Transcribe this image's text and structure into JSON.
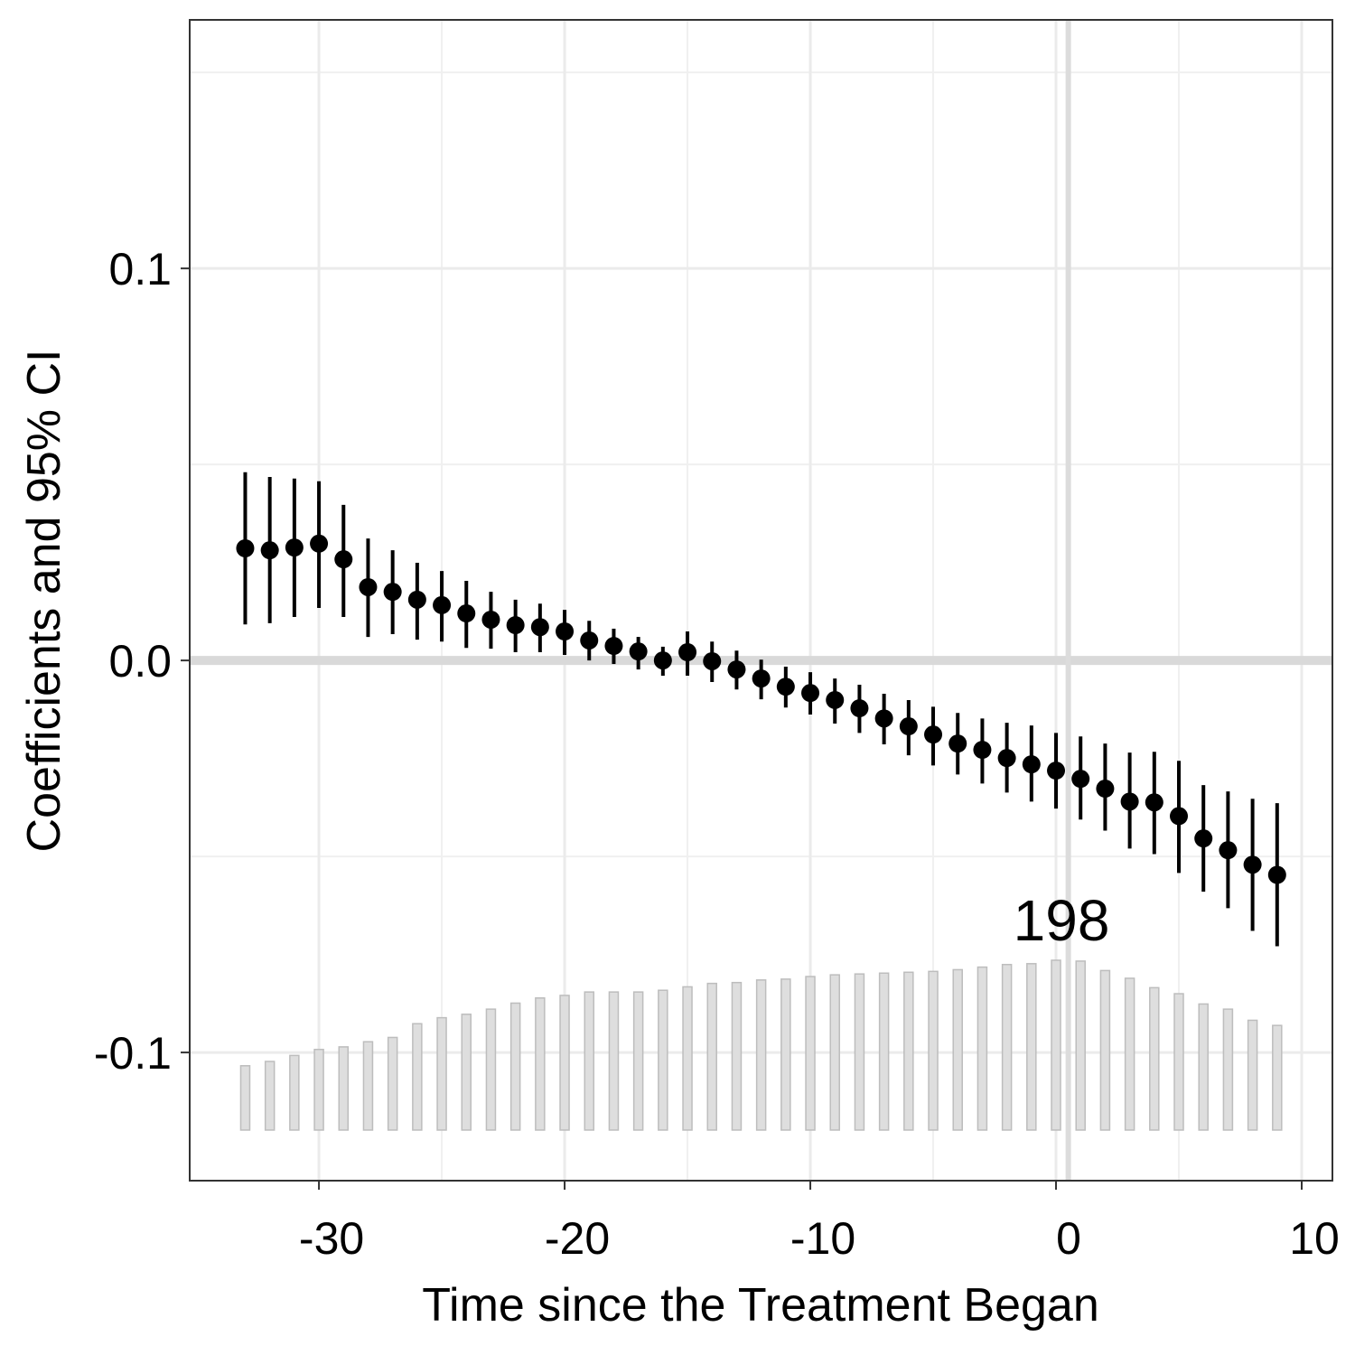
{
  "chart_data": {
    "type": "errorbar",
    "xlabel": "Time since the Treatment Began",
    "ylabel": "Coefficients and 95% CI",
    "x": [
      -33,
      -32,
      -31,
      -30,
      -29,
      -28,
      -27,
      -26,
      -25,
      -24,
      -23,
      -22,
      -21,
      -20,
      -19,
      -18,
      -17,
      -16,
      -15,
      -14,
      -13,
      -12,
      -11,
      -10,
      -9,
      -8,
      -7,
      -6,
      -5,
      -4,
      -3,
      -2,
      -1,
      0,
      1,
      2,
      3,
      4,
      5,
      6,
      7,
      8,
      9
    ],
    "values": [
      0.0286,
      0.0281,
      0.0288,
      0.0298,
      0.0258,
      0.0187,
      0.0175,
      0.0155,
      0.0141,
      0.012,
      0.0104,
      0.009,
      0.0085,
      0.0074,
      0.0051,
      0.0037,
      0.0023,
      0.0,
      0.0021,
      -0.0002,
      -0.0023,
      -0.0046,
      -0.0067,
      -0.0083,
      -0.0101,
      -0.0122,
      -0.0148,
      -0.0168,
      -0.0189,
      -0.0212,
      -0.0228,
      -0.0249,
      -0.0265,
      -0.0281,
      -0.0302,
      -0.0327,
      -0.036,
      -0.0362,
      -0.0397,
      -0.0454,
      -0.0484,
      -0.0521,
      -0.0547
    ],
    "ci_low": [
      0.0092,
      0.0095,
      0.0111,
      0.0134,
      0.0111,
      0.006,
      0.0067,
      0.0053,
      0.0048,
      0.0032,
      0.003,
      0.0021,
      0.0021,
      0.0014,
      0.0,
      -0.0009,
      -0.0023,
      -0.0039,
      -0.0039,
      -0.0055,
      -0.0074,
      -0.0099,
      -0.012,
      -0.0138,
      -0.0161,
      -0.0185,
      -0.0214,
      -0.0242,
      -0.0268,
      -0.0291,
      -0.0314,
      -0.0337,
      -0.036,
      -0.0378,
      -0.0406,
      -0.0434,
      -0.048,
      -0.0494,
      -0.0542,
      -0.059,
      -0.0632,
      -0.069,
      -0.0729
    ],
    "ci_high": [
      0.048,
      0.0468,
      0.0464,
      0.0457,
      0.0397,
      0.0311,
      0.0281,
      0.0249,
      0.0228,
      0.0203,
      0.0175,
      0.0155,
      0.0145,
      0.0129,
      0.0101,
      0.0081,
      0.006,
      0.0035,
      0.0074,
      0.0048,
      0.0025,
      0.0002,
      -0.0016,
      -0.003,
      -0.0046,
      -0.0062,
      -0.0085,
      -0.0101,
      -0.0118,
      -0.0134,
      -0.0148,
      -0.0159,
      -0.0166,
      -0.0185,
      -0.0194,
      -0.0212,
      -0.0235,
      -0.0233,
      -0.0256,
      -0.0318,
      -0.0334,
      -0.0353,
      -0.0364
    ],
    "counts": [
      75,
      80,
      87,
      94,
      97,
      103,
      108,
      124,
      131,
      135,
      141,
      148,
      154,
      157,
      161,
      161,
      161,
      163,
      167,
      171,
      172,
      175,
      176,
      179,
      181,
      182,
      183,
      184,
      185,
      187,
      190,
      193,
      194,
      198,
      197,
      186,
      177,
      166,
      159,
      147,
      141,
      128,
      122
    ],
    "color": "#000000",
    "count_color": "#dedede",
    "xlim": [
      -35.26,
      11.25
    ],
    "ylim": [
      -0.1327,
      0.1634
    ],
    "xticks": [
      -30,
      -20,
      -10,
      0,
      10
    ],
    "yticks": [
      -0.1,
      {
        "value": 0.0,
        "label": "0.0"
      },
      0.1
    ],
    "xminor": [
      -25,
      -15,
      -5,
      5
    ],
    "yminor": [
      -0.05,
      0.05,
      0.15
    ],
    "grid": true,
    "hline": 0,
    "vline": 0.5
  }
}
